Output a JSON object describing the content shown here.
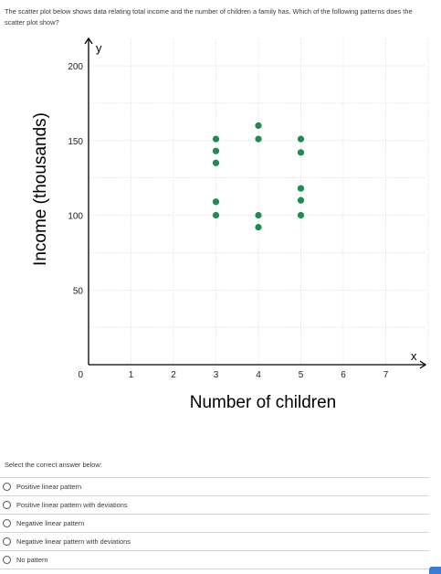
{
  "question": "The scatter plot below shows data relating total income and the number of children a family has. Which of the following patterns does the scatter plot show?",
  "chart_data": {
    "type": "scatter",
    "xlabel": "Number of children",
    "ylabel": "Income (thousands)",
    "x_axis_symbol": "x",
    "y_axis_symbol": "y",
    "xlim": [
      0,
      8
    ],
    "ylim": [
      0,
      210
    ],
    "x_ticks": [
      "1",
      "2",
      "3",
      "4",
      "5",
      "6",
      "7"
    ],
    "y_ticks": [
      "0",
      "50",
      "100",
      "150",
      "200"
    ],
    "grid": true,
    "points": [
      {
        "x": 3,
        "y": 151
      },
      {
        "x": 3,
        "y": 143
      },
      {
        "x": 3,
        "y": 135
      },
      {
        "x": 3,
        "y": 109
      },
      {
        "x": 3,
        "y": 100
      },
      {
        "x": 4,
        "y": 160
      },
      {
        "x": 4,
        "y": 151
      },
      {
        "x": 4,
        "y": 100
      },
      {
        "x": 4,
        "y": 92
      },
      {
        "x": 5,
        "y": 151
      },
      {
        "x": 5,
        "y": 142
      },
      {
        "x": 5,
        "y": 118
      },
      {
        "x": 5,
        "y": 110
      },
      {
        "x": 5,
        "y": 100
      }
    ],
    "point_color": "#1e8c4e"
  },
  "answers": {
    "instruction": "Select the correct answer below:",
    "options": [
      "Positive linear pattern",
      "Positive linear pattern with deviations",
      "Negative linear pattern",
      "Negative linear pattern with deviations",
      "No pattern"
    ]
  }
}
